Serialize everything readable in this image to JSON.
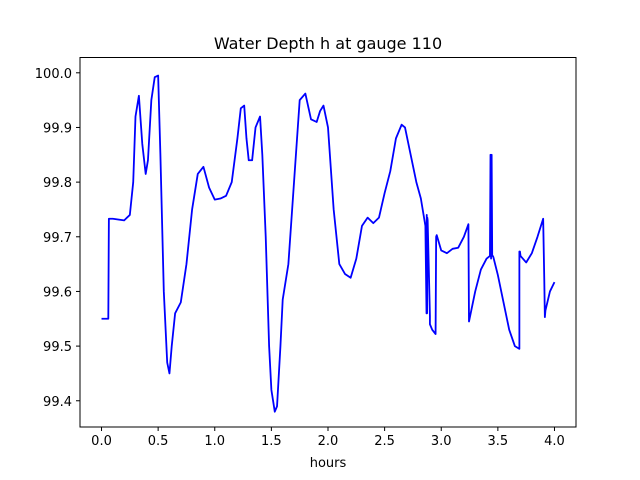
{
  "chart_data": {
    "type": "line",
    "title": "Water Depth h at gauge 110",
    "xlabel": "hours",
    "ylabel": "",
    "xlim": [
      -0.19,
      4.19
    ],
    "ylim": [
      99.352,
      100.028
    ],
    "xticks": [
      0.0,
      0.5,
      1.0,
      1.5,
      2.0,
      2.5,
      3.0,
      3.5,
      4.0
    ],
    "xtick_labels": [
      "0.0",
      "0.5",
      "1.0",
      "1.5",
      "2.0",
      "2.5",
      "3.0",
      "3.5",
      "4.0"
    ],
    "yticks": [
      99.4,
      99.5,
      99.6,
      99.7,
      99.8,
      99.9,
      100.0
    ],
    "ytick_labels": [
      "99.4",
      "99.5",
      "99.6",
      "99.7",
      "99.8",
      "99.9",
      "100.0"
    ],
    "grid": false,
    "series": [
      {
        "color": "#0000ff",
        "x": [
          0.0,
          0.06,
          0.065,
          0.1,
          0.2,
          0.25,
          0.28,
          0.3,
          0.33,
          0.36,
          0.39,
          0.41,
          0.44,
          0.47,
          0.5,
          0.52,
          0.55,
          0.58,
          0.6,
          0.62,
          0.65,
          0.7,
          0.75,
          0.8,
          0.85,
          0.9,
          0.95,
          1.0,
          1.05,
          1.1,
          1.15,
          1.2,
          1.23,
          1.26,
          1.28,
          1.3,
          1.33,
          1.36,
          1.4,
          1.42,
          1.45,
          1.48,
          1.5,
          1.53,
          1.55,
          1.58,
          1.6,
          1.65,
          1.7,
          1.75,
          1.8,
          1.85,
          1.9,
          1.93,
          1.96,
          2.0,
          2.05,
          2.1,
          2.15,
          2.2,
          2.25,
          2.3,
          2.35,
          2.4,
          2.45,
          2.5,
          2.55,
          2.6,
          2.65,
          2.68,
          2.72,
          2.78,
          2.82,
          2.86,
          2.87,
          2.872,
          2.875,
          2.877,
          2.88,
          2.9,
          2.9,
          2.92,
          2.95,
          2.955,
          2.96,
          3.0,
          3.05,
          3.1,
          3.15,
          3.2,
          3.24,
          3.245,
          3.25,
          3.3,
          3.35,
          3.4,
          3.43,
          3.435,
          3.44,
          3.445,
          3.45,
          3.455,
          3.46,
          3.5,
          3.55,
          3.6,
          3.65,
          3.69,
          3.69,
          3.695,
          3.7,
          3.75,
          3.8,
          3.85,
          3.9,
          3.91,
          3.915,
          3.92,
          3.96,
          4.0
        ],
        "values": [
          99.55,
          99.55,
          99.733,
          99.733,
          99.73,
          99.74,
          99.8,
          99.92,
          99.958,
          99.87,
          99.815,
          99.84,
          99.95,
          99.992,
          99.995,
          99.85,
          99.6,
          99.47,
          99.45,
          99.5,
          99.56,
          99.58,
          99.65,
          99.75,
          99.815,
          99.828,
          99.79,
          99.768,
          99.77,
          99.775,
          99.8,
          99.88,
          99.935,
          99.94,
          99.88,
          99.84,
          99.84,
          99.9,
          99.92,
          99.85,
          99.7,
          99.5,
          99.42,
          99.38,
          99.39,
          99.5,
          99.585,
          99.65,
          99.8,
          99.95,
          99.962,
          99.915,
          99.91,
          99.93,
          99.94,
          99.9,
          99.75,
          99.65,
          99.632,
          99.625,
          99.66,
          99.72,
          99.735,
          99.725,
          99.735,
          99.78,
          99.82,
          99.88,
          99.905,
          99.9,
          99.86,
          99.8,
          99.77,
          99.72,
          99.56,
          99.74,
          99.56,
          99.735,
          99.73,
          99.555,
          99.54,
          99.53,
          99.522,
          99.7,
          99.703,
          99.675,
          99.67,
          99.678,
          99.68,
          99.7,
          99.723,
          99.545,
          99.55,
          99.6,
          99.64,
          99.66,
          99.665,
          99.85,
          99.66,
          99.85,
          99.665,
          99.665,
          99.663,
          99.63,
          99.58,
          99.53,
          99.5,
          99.495,
          99.673,
          99.673,
          99.665,
          99.653,
          99.67,
          99.7,
          99.733,
          99.62,
          99.553,
          99.565,
          99.6,
          99.617
        ]
      }
    ]
  }
}
